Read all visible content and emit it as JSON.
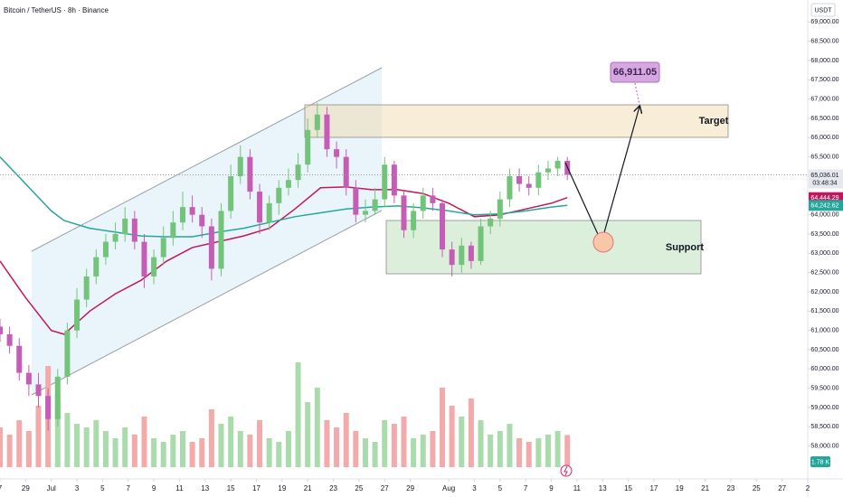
{
  "header": {
    "title": "Bitcoin / TetherUS · 8h · Binance"
  },
  "chart_data": {
    "type": "candlestick",
    "currency": "USDT",
    "x": [
      0,
      0.75,
      1.5,
      2.25,
      3,
      3.75,
      4.5,
      5.25,
      6,
      6.75,
      7.5,
      8.25,
      9,
      9.75,
      10.5,
      11.25,
      12,
      12.75,
      13.5,
      14.25,
      15,
      15.75,
      16.5,
      17.25,
      18,
      18.75,
      19.5,
      20.25,
      21,
      21.75,
      22.5,
      23.25,
      24,
      24.75,
      25.5,
      26.25,
      27,
      27.75,
      28.5,
      29.25,
      30,
      30.75,
      31.5,
      32.25,
      33,
      33.75,
      34.5,
      35.25,
      36,
      36.75,
      37.5,
      38.25,
      39,
      39.75,
      40.5,
      41.25,
      42,
      42.75,
      43.5,
      44.25
    ],
    "open": [
      61100,
      60900,
      60600,
      59900,
      59600,
      59300,
      58700,
      59800,
      61000,
      61800,
      62400,
      62900,
      63300,
      63500,
      63900,
      63300,
      62400,
      62900,
      63400,
      63800,
      64200,
      64000,
      63700,
      62600,
      64100,
      65000,
      65500,
      64600,
      63800,
      64300,
      64700,
      64900,
      65300,
      66200,
      66600,
      65700,
      65500,
      64700,
      64000,
      64100,
      64400,
      65300,
      64500,
      63600,
      64100,
      64500,
      64300,
      63100,
      62700,
      63200,
      62800,
      63700,
      63900,
      64400,
      65000,
      64800,
      64700,
      65100,
      65200,
      65400
    ],
    "high": [
      61300,
      61100,
      60800,
      60100,
      59900,
      59500,
      60000,
      61200,
      62100,
      62600,
      63100,
      63500,
      63800,
      64200,
      64100,
      63500,
      63100,
      63700,
      64100,
      64600,
      64500,
      64200,
      63900,
      64300,
      65300,
      65800,
      65700,
      64800,
      64500,
      64900,
      65200,
      65600,
      66500,
      66900,
      66800,
      65900,
      65700,
      64900,
      64400,
      64700,
      65500,
      65400,
      64600,
      64300,
      64700,
      64700,
      64400,
      63300,
      63400,
      63300,
      63900,
      64100,
      64600,
      65200,
      65200,
      65000,
      65300,
      65400,
      65500,
      65500
    ],
    "low": [
      60700,
      60400,
      59700,
      59300,
      59000,
      58400,
      58500,
      59600,
      60800,
      61600,
      62200,
      62700,
      63100,
      63300,
      63100,
      62100,
      62200,
      62700,
      63200,
      63600,
      63800,
      63400,
      62300,
      62400,
      63900,
      64800,
      64400,
      63500,
      63600,
      64000,
      64500,
      64700,
      65100,
      66000,
      65500,
      65200,
      64500,
      63800,
      63800,
      64000,
      64200,
      64300,
      63400,
      63400,
      63900,
      64100,
      62900,
      62400,
      62500,
      62600,
      62700,
      63500,
      63700,
      64200,
      64600,
      64500,
      64500,
      64900,
      65000,
      64900
    ],
    "close": [
      60900,
      60600,
      59900,
      59600,
      59300,
      58700,
      59800,
      61000,
      61800,
      62400,
      62900,
      63300,
      63500,
      63900,
      63300,
      62400,
      62900,
      63400,
      63800,
      64200,
      64000,
      63700,
      62600,
      64100,
      65000,
      65500,
      64600,
      63800,
      64300,
      64700,
      64900,
      65300,
      66200,
      66600,
      65700,
      65500,
      64700,
      64000,
      64100,
      64400,
      65300,
      64500,
      63600,
      64100,
      64500,
      64300,
      63100,
      62700,
      63200,
      62800,
      63700,
      63900,
      64400,
      65000,
      64800,
      64700,
      65100,
      65200,
      65400,
      65036.01
    ],
    "volume": [
      2.2,
      1.8,
      2.6,
      2.0,
      3.4,
      5.6,
      4.0,
      3.0,
      2.4,
      2.2,
      2.6,
      2.0,
      1.6,
      2.2,
      1.8,
      2.8,
      1.6,
      1.4,
      1.8,
      2.0,
      1.4,
      1.6,
      3.2,
      2.4,
      2.8,
      2.0,
      1.8,
      2.6,
      1.6,
      1.4,
      2.0,
      5.8,
      3.6,
      4.4,
      2.6,
      2.2,
      3.0,
      2.0,
      1.6,
      1.4,
      2.6,
      2.4,
      2.8,
      1.6,
      1.8,
      2.0,
      4.4,
      3.4,
      2.8,
      3.8,
      2.6,
      1.8,
      2.0,
      2.4,
      1.6,
      1.4,
      1.6,
      1.8,
      2.0,
      1.78
    ],
    "volume_lim": [
      0,
      6
    ],
    "volume_label": "1.78 K",
    "up_color": "#72c47a",
    "down_color": "#c55db6",
    "volume_colors": {
      "up": "#a9dbac",
      "down": "#f3aaaa"
    },
    "ma_series": [
      {
        "color": "#c2185b",
        "x": [
          0,
          2,
          4,
          5,
          7,
          9,
          11,
          13,
          15,
          17,
          19,
          21,
          23,
          25,
          27,
          29,
          31,
          33,
          35,
          37,
          39,
          41,
          43,
          44.25
        ],
        "values": [
          62800,
          61850,
          61000,
          60900,
          61500,
          61950,
          62300,
          62800,
          63150,
          63300,
          63450,
          63650,
          64150,
          64700,
          64720,
          64650,
          64650,
          64550,
          64300,
          63950,
          64000,
          64150,
          64300,
          64444.29
        ]
      },
      {
        "color": "#26a69a",
        "x": [
          0,
          2,
          4,
          5,
          7,
          9,
          11,
          13,
          15,
          17,
          19,
          21,
          23,
          25,
          27,
          29,
          31,
          33,
          35,
          37,
          39,
          41,
          43,
          44.25
        ],
        "values": [
          65500,
          64800,
          64100,
          63850,
          63650,
          63550,
          63450,
          63430,
          63430,
          63550,
          63650,
          63800,
          63950,
          64050,
          64150,
          64200,
          64230,
          64180,
          64100,
          64000,
          64020,
          64100,
          64200,
          64242.62
        ]
      }
    ],
    "xlim": [
      0,
      63
    ],
    "xticks": [
      {
        "value": 0,
        "label": "7"
      },
      {
        "value": 2,
        "label": "29"
      },
      {
        "value": 4,
        "label": "Jul"
      },
      {
        "value": 6,
        "label": "3"
      },
      {
        "value": 8,
        "label": "5"
      },
      {
        "value": 10,
        "label": "7"
      },
      {
        "value": 12,
        "label": "9"
      },
      {
        "value": 14,
        "label": "11"
      },
      {
        "value": 16,
        "label": "13"
      },
      {
        "value": 18,
        "label": "15"
      },
      {
        "value": 20,
        "label": "17"
      },
      {
        "value": 22,
        "label": "19"
      },
      {
        "value": 24,
        "label": "21"
      },
      {
        "value": 26,
        "label": "23"
      },
      {
        "value": 28,
        "label": "25"
      },
      {
        "value": 30,
        "label": "27"
      },
      {
        "value": 32,
        "label": "29"
      },
      {
        "value": 35,
        "label": "Aug"
      },
      {
        "value": 37,
        "label": "3"
      },
      {
        "value": 39,
        "label": "5"
      },
      {
        "value": 41,
        "label": "7"
      },
      {
        "value": 43,
        "label": "9"
      },
      {
        "value": 45,
        "label": "11"
      },
      {
        "value": 47,
        "label": "13"
      },
      {
        "value": 49,
        "label": "15"
      },
      {
        "value": 51,
        "label": "17"
      },
      {
        "value": 53,
        "label": "19"
      },
      {
        "value": 55,
        "label": "21"
      },
      {
        "value": 57,
        "label": "23"
      },
      {
        "value": 59,
        "label": "25"
      },
      {
        "value": 61,
        "label": "27"
      },
      {
        "value": 63,
        "label": "2"
      }
    ],
    "ylim": [
      57500,
      69500
    ],
    "yticks": [
      {
        "value": 58000,
        "label": "58,000.00"
      },
      {
        "value": 58500,
        "label": "58,500.00"
      },
      {
        "value": 59000,
        "label": "59,000.00"
      },
      {
        "value": 59500,
        "label": "59,500.00"
      },
      {
        "value": 60000,
        "label": "60,000.00"
      },
      {
        "value": 60500,
        "label": "60,500.00"
      },
      {
        "value": 61000,
        "label": "61,000.00"
      },
      {
        "value": 61500,
        "label": "61,500.00"
      },
      {
        "value": 62000,
        "label": "62,000.00"
      },
      {
        "value": 62500,
        "label": "62,500.00"
      },
      {
        "value": 63000,
        "label": "63,000.00"
      },
      {
        "value": 63500,
        "label": "63,500.00"
      },
      {
        "value": 64000,
        "label": "64,000.00"
      },
      {
        "value": 64500,
        "label": "64,500.00"
      },
      {
        "value": 65000,
        "label": "65,000.00"
      },
      {
        "value": 65500,
        "label": "65,500.00"
      },
      {
        "value": 66000,
        "label": "66,000.00"
      },
      {
        "value": 66500,
        "label": "66,500.00"
      },
      {
        "value": 67000,
        "label": "67,000.00"
      },
      {
        "value": 67500,
        "label": "67,500.00"
      },
      {
        "value": 68000,
        "label": "68,000.00"
      },
      {
        "value": 68500,
        "label": "68,500.00"
      },
      {
        "value": 69000,
        "label": "69,000.00"
      }
    ],
    "price_tags": [
      {
        "value": 65036.01,
        "label": "65,036.01",
        "color": "#e6e8ee",
        "text_color": "#131722"
      },
      {
        "value": 64444.29,
        "label": "64,444.29",
        "color": "#c2185b",
        "text_color": "#ffffff"
      },
      {
        "value": 64242.62,
        "label": "64,242.62",
        "color": "#26a69a",
        "text_color": "#ffffff"
      }
    ],
    "countdown": "03:48:34",
    "annotations": {
      "target_label": "Target",
      "support_label": "Support",
      "target_price": "66,911.05"
    }
  }
}
